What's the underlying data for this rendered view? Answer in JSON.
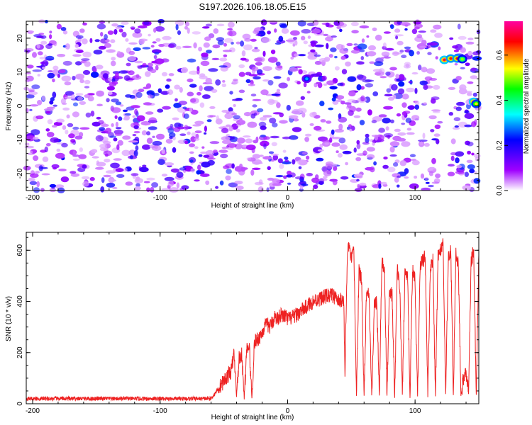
{
  "chart_data": [
    {
      "type": "heatmap",
      "title": "S197.2026.106.18.05.E15",
      "xlabel": "Height of straight line (km)",
      "ylabel": "Frequency (Hz)",
      "xlim": [
        -205,
        150
      ],
      "ylim": [
        -25,
        25
      ],
      "xticks": [
        "-200",
        "-100",
        "0",
        "100"
      ],
      "yticks": [
        "-20",
        "-10",
        "0",
        "10",
        "20"
      ],
      "colorbar": {
        "label": "Normalized spectral amplitude",
        "range": [
          0,
          0.75
        ],
        "ticks": [
          "0.0",
          "0.2",
          "0.4",
          "0.6"
        ],
        "colors": [
          "#ffffff",
          "#a000ff",
          "#0000ff",
          "#00ffff",
          "#00ff00",
          "#ffff00",
          "#ff0000",
          "#ff00a0"
        ]
      },
      "background_level": 0.1,
      "gap_ranges_km": [
        [
          120,
          128
        ],
        [
          138,
          140
        ]
      ],
      "hot_spots": [
        {
          "x": 123,
          "y": 13.6,
          "value": 0.7
        },
        {
          "x": 128,
          "y": 14.0,
          "value": 0.65
        },
        {
          "x": 133,
          "y": 14.0,
          "value": 0.65
        },
        {
          "x": 137,
          "y": 13.8,
          "value": 0.5
        },
        {
          "x": 146,
          "y": 1.2,
          "value": 0.7
        },
        {
          "x": 148,
          "y": 0.6,
          "value": 0.55
        },
        {
          "x": 15,
          "y": 8.0,
          "value": 0.3
        }
      ]
    },
    {
      "type": "line",
      "title": "",
      "xlabel": "Height of straight line (km)",
      "ylabel": "SNR (10 * v/v)",
      "xlim": [
        -205,
        150
      ],
      "ylim": [
        0,
        670
      ],
      "xticks": [
        "-200",
        "-100",
        "0",
        "100"
      ],
      "yticks": [
        "0",
        "200",
        "400",
        "600"
      ],
      "color": "#ee2222",
      "series": [
        {
          "x": [
            -205,
            -60,
            -44,
            -42,
            -40,
            -38,
            -36,
            -34,
            -32,
            -30,
            -28,
            -26,
            -24,
            -22,
            -20,
            -18,
            -16,
            -14,
            -12,
            -10,
            -8,
            -6,
            -4,
            -2,
            0,
            5,
            10,
            15,
            20,
            25,
            30,
            35,
            40,
            44,
            45,
            47,
            48,
            50,
            52,
            54,
            56,
            58,
            60,
            62,
            64,
            66,
            68,
            70,
            72,
            74,
            76,
            78,
            80,
            82,
            84,
            86,
            88,
            90,
            92,
            94,
            96,
            98,
            100,
            102,
            104,
            106,
            108,
            110,
            112,
            114,
            116,
            118,
            120,
            122,
            124,
            126,
            128,
            130,
            132,
            134,
            136,
            138,
            140,
            142,
            144,
            146,
            148,
            150
          ],
          "y": [
            20,
            20,
            130,
            200,
            30,
            180,
            190,
            25,
            210,
            220,
            20,
            240,
            250,
            260,
            280,
            300,
            310,
            300,
            320,
            340,
            330,
            350,
            340,
            345,
            330,
            340,
            360,
            380,
            400,
            410,
            420,
            425,
            400,
            410,
            120,
            600,
            620,
            560,
            600,
            30,
            520,
            480,
            30,
            460,
            420,
            30,
            380,
            400,
            30,
            560,
            520,
            30,
            450,
            420,
            30,
            520,
            460,
            30,
            500,
            520,
            30,
            520,
            480,
            30,
            540,
            560,
            580,
            30,
            520,
            560,
            30,
            580,
            600,
            620,
            30,
            560,
            600,
            30,
            580,
            540,
            30,
            100,
            130,
            40,
            560,
            600,
            30,
            580
          ]
        }
      ]
    }
  ]
}
